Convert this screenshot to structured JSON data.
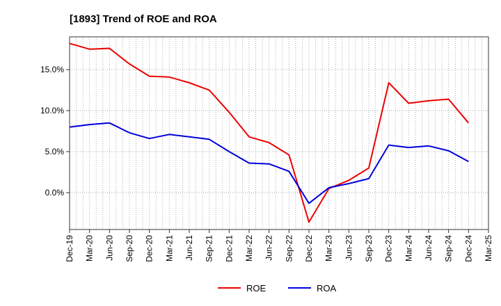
{
  "chart_data": {
    "type": "line",
    "title": "[1893]  Trend of ROE and ROA",
    "xlabel": "",
    "ylabel": "",
    "categories": [
      "Dec-19",
      "Mar-20",
      "Jun-20",
      "Sep-20",
      "Dec-20",
      "Mar-21",
      "Jun-21",
      "Sep-21",
      "Dec-21",
      "Mar-22",
      "Jun-22",
      "Sep-22",
      "Dec-22",
      "Mar-23",
      "Jun-23",
      "Sep-23",
      "Dec-23",
      "Mar-24",
      "Jun-24",
      "Sep-24",
      "Dec-24",
      "Mar-25"
    ],
    "ylim": [
      -4.5,
      19.0
    ],
    "yticks": [
      0,
      5,
      10,
      15
    ],
    "ytick_labels": [
      "0.0%",
      "5.0%",
      "10.0%",
      "15.0%"
    ],
    "grid": true,
    "legend_position": "bottom-center",
    "series": [
      {
        "name": "ROE",
        "color": "#ee0000",
        "values": [
          18.2,
          17.5,
          17.6,
          15.7,
          14.2,
          14.1,
          13.4,
          12.5,
          9.8,
          6.8,
          6.1,
          4.6,
          -3.6,
          0.5,
          1.5,
          3.0,
          13.4,
          10.9,
          11.2,
          11.4,
          8.5,
          null
        ]
      },
      {
        "name": "ROA",
        "color": "#0000dd",
        "values": [
          8.0,
          8.3,
          8.5,
          7.3,
          6.6,
          7.1,
          6.8,
          6.5,
          5.0,
          3.6,
          3.5,
          2.6,
          -1.3,
          0.6,
          1.1,
          1.7,
          5.8,
          5.5,
          5.7,
          5.1,
          3.8,
          null
        ]
      }
    ]
  }
}
